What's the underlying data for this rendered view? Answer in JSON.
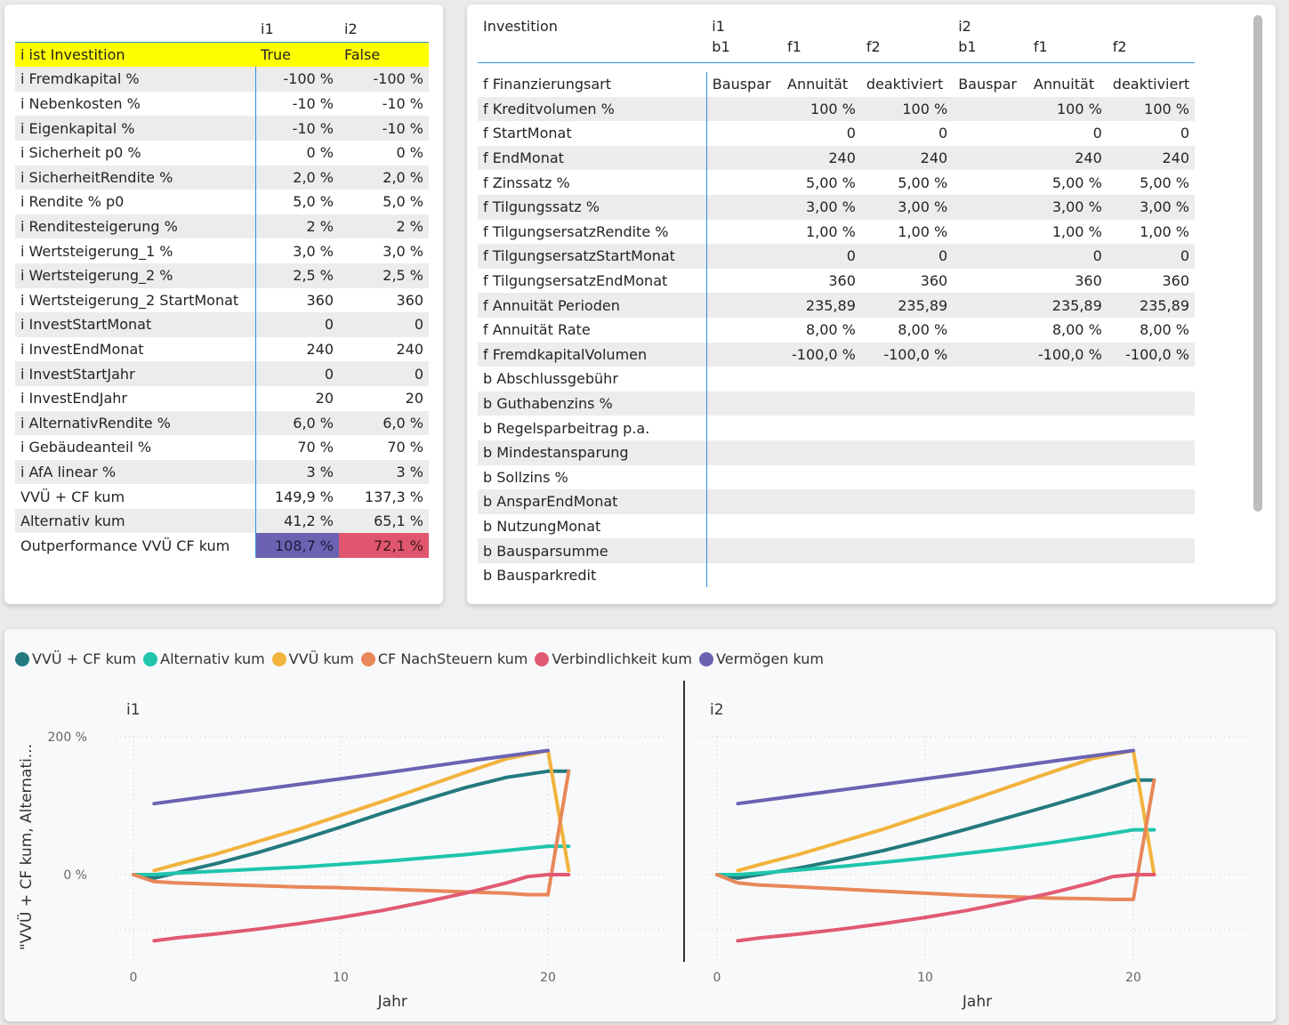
{
  "table1": {
    "headers": [
      "",
      "i1",
      "i2"
    ],
    "highlight": {
      "label": "i ist Investition",
      "i1": "True",
      "i2": "False"
    },
    "rows": [
      {
        "label": "i Fremdkapital %",
        "i1": "-100 %",
        "i2": "-100 %"
      },
      {
        "label": "i Nebenkosten %",
        "i1": "-10 %",
        "i2": "-10 %"
      },
      {
        "label": "i Eigenkapital %",
        "i1": "-10 %",
        "i2": "-10 %"
      },
      {
        "label": "i Sicherheit p0 %",
        "i1": "0 %",
        "i2": "0 %"
      },
      {
        "label": "i SicherheitRendite %",
        "i1": "2,0 %",
        "i2": "2,0 %"
      },
      {
        "label": "i Rendite % p0",
        "i1": "5,0 %",
        "i2": "5,0 %"
      },
      {
        "label": "i Renditesteigerung %",
        "i1": "2 %",
        "i2": "2 %"
      },
      {
        "label": "i Wertsteigerung_1 %",
        "i1": "3,0 %",
        "i2": "3,0 %"
      },
      {
        "label": "i Wertsteigerung_2 %",
        "i1": "2,5 %",
        "i2": "2,5 %"
      },
      {
        "label": "i Wertsteigerung_2 StartMonat",
        "i1": "360",
        "i2": "360"
      },
      {
        "label": "i InvestStartMonat",
        "i1": "0",
        "i2": "0"
      },
      {
        "label": "i InvestEndMonat",
        "i1": "240",
        "i2": "240"
      },
      {
        "label": "i InvestStartJahr",
        "i1": "0",
        "i2": "0"
      },
      {
        "label": "i InvestEndJahr",
        "i1": "20",
        "i2": "20"
      },
      {
        "label": "i AlternativRendite %",
        "i1": "6,0 %",
        "i2": "6,0 %"
      },
      {
        "label": "i Gebäudeanteil %",
        "i1": "70 %",
        "i2": "70 %"
      },
      {
        "label": "i AfA linear %",
        "i1": "3 %",
        "i2": "3 %"
      },
      {
        "label": "VVÜ + CF kum",
        "i1": "149,9 %",
        "i2": "137,3 %"
      },
      {
        "label": "Alternativ kum",
        "i1": "41,2 %",
        "i2": "65,1 %"
      },
      {
        "label": "Outperformance VVÜ CF kum",
        "i1": "108,7 %",
        "i2": "72,1 %"
      }
    ]
  },
  "table2": {
    "header_label": "Investition",
    "groups": [
      "i1",
      "i2"
    ],
    "subheaders": [
      "b1",
      "f1",
      "f2",
      "b1",
      "f1",
      "f2"
    ],
    "rows": [
      {
        "label": "f Finanzierungsart",
        "v": [
          "Bauspar",
          "Annuität",
          "deaktiviert",
          "Bauspar",
          "Annuität",
          "deaktiviert"
        ]
      },
      {
        "label": "f Kreditvolumen %",
        "v": [
          "",
          "100 %",
          "100 %",
          "",
          "100 %",
          "100 %"
        ]
      },
      {
        "label": "f StartMonat",
        "v": [
          "",
          "0",
          "0",
          "",
          "0",
          "0"
        ]
      },
      {
        "label": "f EndMonat",
        "v": [
          "",
          "240",
          "240",
          "",
          "240",
          "240"
        ]
      },
      {
        "label": "f Zinssatz %",
        "v": [
          "",
          "5,00 %",
          "5,00 %",
          "",
          "5,00 %",
          "5,00 %"
        ]
      },
      {
        "label": "f Tilgungssatz %",
        "v": [
          "",
          "3,00 %",
          "3,00 %",
          "",
          "3,00 %",
          "3,00 %"
        ]
      },
      {
        "label": "f TilgungsersatzRendite %",
        "v": [
          "",
          "1,00 %",
          "1,00 %",
          "",
          "1,00 %",
          "1,00 %"
        ]
      },
      {
        "label": "f TilgungsersatzStartMonat",
        "v": [
          "",
          "0",
          "0",
          "",
          "0",
          "0"
        ]
      },
      {
        "label": "f TilgungsersatzEndMonat",
        "v": [
          "",
          "360",
          "360",
          "",
          "360",
          "360"
        ]
      },
      {
        "label": "f Annuität Perioden",
        "v": [
          "",
          "235,89",
          "235,89",
          "",
          "235,89",
          "235,89"
        ]
      },
      {
        "label": "f Annuität Rate",
        "v": [
          "",
          "8,00 %",
          "8,00 %",
          "",
          "8,00 %",
          "8,00 %"
        ]
      },
      {
        "label": "f FremdkapitalVolumen",
        "v": [
          "",
          "-100,0 %",
          "-100,0 %",
          "",
          "-100,0 %",
          "-100,0 %"
        ]
      },
      {
        "label": "b Abschlussgebühr",
        "v": [
          "",
          "",
          "",
          "",
          "",
          ""
        ]
      },
      {
        "label": "b Guthabenzins %",
        "v": [
          "",
          "",
          "",
          "",
          "",
          ""
        ]
      },
      {
        "label": "b Regelsparbeitrag p.a.",
        "v": [
          "",
          "",
          "",
          "",
          "",
          ""
        ]
      },
      {
        "label": "b Mindestansparung",
        "v": [
          "",
          "",
          "",
          "",
          "",
          ""
        ]
      },
      {
        "label": "b Sollzins %",
        "v": [
          "",
          "",
          "",
          "",
          "",
          ""
        ]
      },
      {
        "label": "b AnsparEndMonat",
        "v": [
          "",
          "",
          "",
          "",
          "",
          ""
        ]
      },
      {
        "label": "b NutzungMonat",
        "v": [
          "",
          "",
          "",
          "",
          "",
          ""
        ]
      },
      {
        "label": "b Bausparsumme",
        "v": [
          "",
          "",
          "",
          "",
          "",
          ""
        ]
      },
      {
        "label": "b Bausparkredit",
        "v": [
          "",
          "",
          "",
          "",
          "",
          ""
        ]
      }
    ]
  },
  "chart_data": {
    "type": "line",
    "legend": [
      {
        "name": "VVÜ + CF kum",
        "color": "#237a7f"
      },
      {
        "name": "Alternativ kum",
        "color": "#1fc5ad"
      },
      {
        "name": "VVÜ kum",
        "color": "#f2b33d"
      },
      {
        "name": "CF NachSteuern kum",
        "color": "#e9875a"
      },
      {
        "name": "Verbindlichkeit kum",
        "color": "#e15a73"
      },
      {
        "name": "Vermögen kum",
        "color": "#6b63b2"
      }
    ],
    "ylabel": "\"VVÜ + CF kum, Alternati...",
    "xlabel": "Jahr",
    "ytick_labels": [
      "200 %",
      "0 %"
    ],
    "yticks": [
      200,
      0
    ],
    "xticks": [
      0,
      10,
      20
    ],
    "xlim": [
      0,
      22
    ],
    "ylim": [
      -140,
      215
    ],
    "panels": [
      {
        "title": "i1",
        "series": [
          {
            "name": "VVÜ + CF kum",
            "x": [
              0,
              1,
              2,
              4,
              6,
              8,
              10,
              12,
              14,
              16,
              18,
              20,
              21
            ],
            "y": [
              0,
              -5,
              2,
              16,
              32,
              50,
              69,
              89,
              108,
              126,
              141,
              150,
              150
            ]
          },
          {
            "name": "Alternativ kum",
            "x": [
              0,
              1,
              2,
              4,
              6,
              8,
              10,
              12,
              14,
              16,
              18,
              20,
              21
            ],
            "y": [
              0,
              0,
              2,
              5,
              8,
              11,
              15,
              19,
              24,
              29,
              35,
              41.2,
              41.2
            ]
          },
          {
            "name": "VVÜ kum",
            "x": [
              1,
              2,
              4,
              6,
              8,
              10,
              12,
              14,
              16,
              18,
              20,
              21
            ],
            "y": [
              6,
              14,
              30,
              48,
              66,
              86,
              106,
              127,
              148,
              168,
              180,
              6
            ]
          },
          {
            "name": "CF NachSteuern kum",
            "x": [
              0,
              1,
              2,
              4,
              6,
              8,
              10,
              12,
              14,
              16,
              18,
              19,
              20,
              21
            ],
            "y": [
              0,
              -10,
              -12,
              -14,
              -16,
              -18,
              -19,
              -21,
              -23,
              -25,
              -27,
              -29,
              -29,
              150
            ]
          },
          {
            "name": "Verbindlichkeit kum",
            "x": [
              1,
              2,
              4,
              6,
              8,
              10,
              12,
              14,
              16,
              18,
              19,
              20,
              21
            ],
            "y": [
              -96,
              -92,
              -86,
              -79,
              -71,
              -62,
              -52,
              -40,
              -27,
              -12,
              -3,
              0,
              0
            ]
          },
          {
            "name": "Vermögen kum",
            "x": [
              1,
              4,
              8,
              12,
              16,
              20
            ],
            "y": [
              103,
              115,
              131,
              147,
              164,
              180
            ]
          }
        ]
      },
      {
        "title": "i2",
        "series": [
          {
            "name": "VVÜ + CF kum",
            "x": [
              0,
              1,
              2,
              4,
              6,
              8,
              10,
              12,
              14,
              16,
              18,
              20,
              21
            ],
            "y": [
              0,
              -5,
              0,
              10,
              22,
              35,
              50,
              66,
              83,
              100,
              118,
              137,
              137
            ]
          },
          {
            "name": "Alternativ kum",
            "x": [
              0,
              1,
              2,
              4,
              6,
              8,
              10,
              12,
              14,
              16,
              18,
              20,
              21
            ],
            "y": [
              0,
              0,
              2,
              7,
              12,
              18,
              24,
              31,
              38,
              46,
              55,
              65,
              65
            ]
          },
          {
            "name": "VVÜ kum",
            "x": [
              1,
              2,
              4,
              6,
              8,
              10,
              12,
              14,
              16,
              18,
              20,
              21
            ],
            "y": [
              6,
              14,
              30,
              48,
              66,
              86,
              106,
              127,
              148,
              168,
              180,
              0
            ]
          },
          {
            "name": "CF NachSteuern kum",
            "x": [
              0,
              1,
              2,
              4,
              6,
              8,
              10,
              12,
              14,
              16,
              18,
              19,
              20,
              21
            ],
            "y": [
              0,
              -12,
              -15,
              -18,
              -21,
              -24,
              -27,
              -30,
              -32,
              -34,
              -35,
              -36,
              -36,
              137
            ]
          },
          {
            "name": "Verbindlichkeit kum",
            "x": [
              1,
              2,
              4,
              6,
              8,
              10,
              12,
              14,
              16,
              18,
              19,
              20,
              21
            ],
            "y": [
              -96,
              -92,
              -86,
              -79,
              -71,
              -62,
              -52,
              -40,
              -27,
              -12,
              -3,
              0,
              0
            ]
          },
          {
            "name": "Vermögen kum",
            "x": [
              1,
              4,
              8,
              12,
              16,
              20
            ],
            "y": [
              103,
              115,
              131,
              147,
              164,
              180
            ]
          }
        ]
      }
    ]
  }
}
